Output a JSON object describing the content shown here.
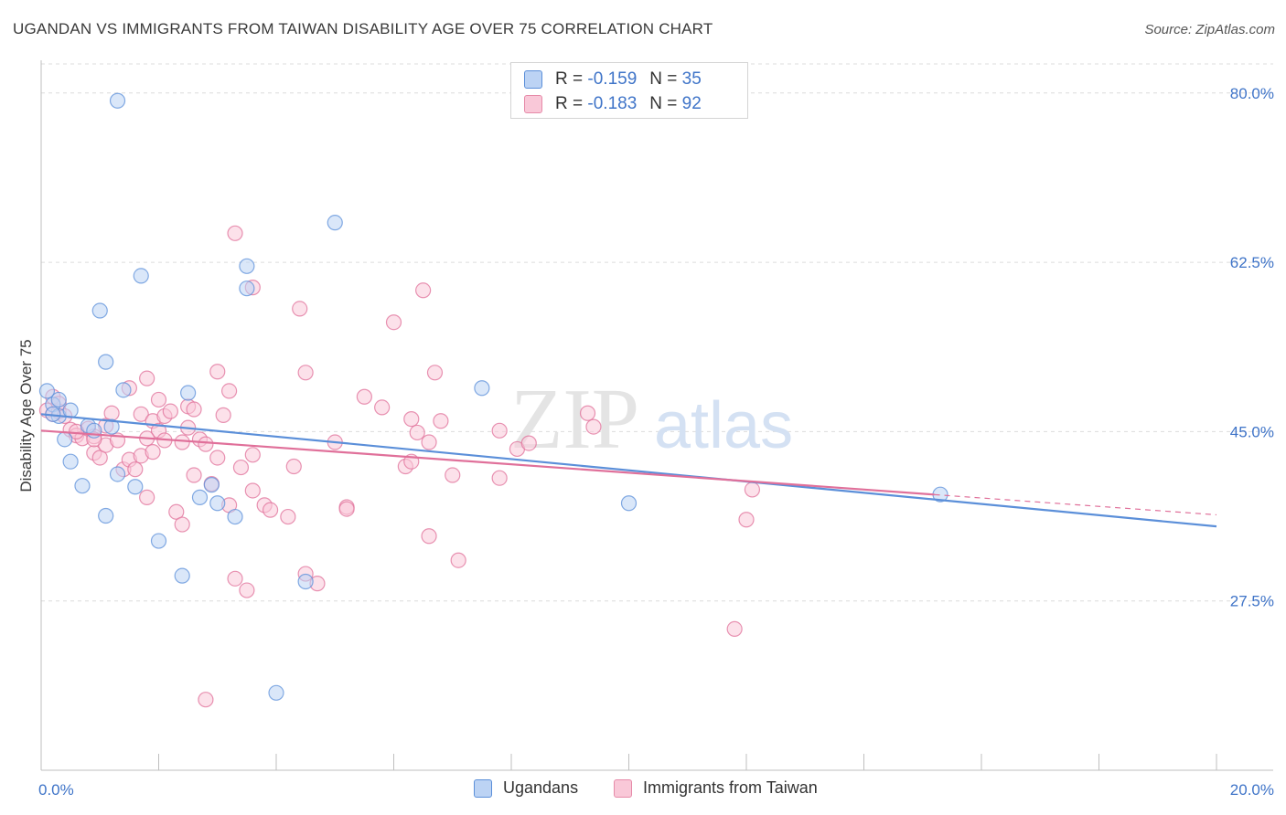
{
  "title": "UGANDAN VS IMMIGRANTS FROM TAIWAN DISABILITY AGE OVER 75 CORRELATION CHART",
  "source": "Source: ZipAtlas.com",
  "watermark": {
    "zip": "ZIP",
    "atlas": "atlas"
  },
  "legend": {
    "r_label": "R =",
    "n_label": "N =",
    "rows": [
      {
        "r": "-0.159",
        "n": "35",
        "fill": "#bcd3f4",
        "stroke": "#5b8fd9"
      },
      {
        "r": "-0.183",
        "n": "92",
        "fill": "#f9c8d8",
        "stroke": "#e68aa8"
      }
    ]
  },
  "bottom_legend": {
    "ugandans": "Ugandans",
    "taiwan": "Immigrants from Taiwan"
  },
  "chart_data": {
    "type": "scatter",
    "ylabel": "Disability Age Over 75",
    "xlabel": "",
    "x_tick_labels": {
      "min": "0.0%",
      "max": "20.0%"
    },
    "y_tick_labels": [
      "80.0%",
      "62.5%",
      "45.0%",
      "27.5%"
    ],
    "xlim": [
      0,
      20
    ],
    "ylim": [
      10,
      83
    ],
    "y_ticks": [
      80,
      62.5,
      45,
      27.5
    ],
    "grid": true,
    "series": [
      {
        "name": "Ugandans",
        "color": "#5b8fd9",
        "fill": "#bcd3f4",
        "trend": {
          "x0": 0,
          "y0": 46.8,
          "x1": 20,
          "y1": 35.2,
          "dash_from": null
        },
        "points": [
          [
            0.1,
            49.2
          ],
          [
            0.2,
            47.8
          ],
          [
            0.3,
            46.6
          ],
          [
            0.5,
            47.2
          ],
          [
            0.8,
            45.6
          ],
          [
            0.4,
            44.2
          ],
          [
            0.5,
            41.9
          ],
          [
            0.7,
            39.4
          ],
          [
            1.0,
            57.5
          ],
          [
            1.1,
            52.2
          ],
          [
            1.1,
            36.3
          ],
          [
            1.2,
            45.5
          ],
          [
            1.3,
            40.6
          ],
          [
            1.4,
            49.3
          ],
          [
            1.6,
            39.3
          ],
          [
            1.7,
            61.1
          ],
          [
            2.0,
            33.7
          ],
          [
            2.4,
            30.1
          ],
          [
            2.5,
            49.0
          ],
          [
            2.7,
            38.2
          ],
          [
            2.9,
            39.5
          ],
          [
            3.0,
            37.6
          ],
          [
            3.3,
            36.2
          ],
          [
            3.5,
            59.8
          ],
          [
            3.5,
            62.1
          ],
          [
            4.0,
            18.0
          ],
          [
            4.5,
            29.5
          ],
          [
            5.0,
            66.6
          ],
          [
            7.5,
            49.5
          ],
          [
            10.0,
            37.6
          ],
          [
            15.3,
            38.5
          ],
          [
            1.3,
            79.2
          ],
          [
            0.2,
            46.8
          ],
          [
            0.9,
            45.1
          ],
          [
            0.3,
            48.3
          ]
        ]
      },
      {
        "name": "Immigrants from Taiwan",
        "color": "#e0709a",
        "fill": "#f9c8d8",
        "trend": {
          "x0": 0,
          "y0": 45.1,
          "x1": 20,
          "y1": 36.4,
          "dash_from": 15.2
        },
        "points": [
          [
            0.1,
            47.2
          ],
          [
            0.2,
            48.6
          ],
          [
            0.2,
            46.8
          ],
          [
            0.3,
            47.1
          ],
          [
            0.4,
            46.6
          ],
          [
            0.5,
            45.2
          ],
          [
            0.6,
            44.6
          ],
          [
            0.7,
            44.3
          ],
          [
            0.8,
            45.3
          ],
          [
            0.9,
            44.5
          ],
          [
            0.9,
            42.8
          ],
          [
            1.0,
            42.3
          ],
          [
            1.1,
            43.6
          ],
          [
            1.2,
            46.9
          ],
          [
            1.3,
            44.1
          ],
          [
            1.4,
            41.1
          ],
          [
            1.5,
            49.5
          ],
          [
            1.5,
            42.1
          ],
          [
            1.6,
            41.1
          ],
          [
            1.7,
            42.5
          ],
          [
            1.7,
            46.8
          ],
          [
            1.8,
            38.2
          ],
          [
            1.8,
            50.5
          ],
          [
            1.9,
            42.9
          ],
          [
            1.9,
            46.1
          ],
          [
            2.0,
            45.1
          ],
          [
            2.0,
            48.3
          ],
          [
            2.1,
            46.6
          ],
          [
            2.1,
            44.1
          ],
          [
            2.2,
            47.1
          ],
          [
            2.3,
            36.7
          ],
          [
            2.4,
            35.4
          ],
          [
            2.4,
            43.9
          ],
          [
            2.5,
            45.4
          ],
          [
            2.5,
            47.6
          ],
          [
            2.6,
            47.3
          ],
          [
            2.7,
            44.2
          ],
          [
            2.8,
            43.7
          ],
          [
            2.8,
            17.3
          ],
          [
            2.9,
            39.6
          ],
          [
            3.0,
            51.2
          ],
          [
            3.0,
            42.3
          ],
          [
            3.1,
            46.7
          ],
          [
            3.2,
            49.2
          ],
          [
            3.2,
            37.4
          ],
          [
            3.3,
            29.8
          ],
          [
            3.3,
            65.5
          ],
          [
            3.4,
            41.3
          ],
          [
            3.5,
            28.6
          ],
          [
            3.6,
            42.6
          ],
          [
            3.6,
            59.9
          ],
          [
            3.8,
            37.4
          ],
          [
            3.9,
            36.9
          ],
          [
            4.2,
            36.2
          ],
          [
            4.3,
            41.4
          ],
          [
            4.4,
            57.7
          ],
          [
            4.5,
            51.1
          ],
          [
            4.5,
            30.3
          ],
          [
            4.7,
            29.3
          ],
          [
            5.0,
            43.9
          ],
          [
            5.2,
            37.2
          ],
          [
            5.5,
            48.6
          ],
          [
            5.8,
            47.5
          ],
          [
            6.0,
            56.3
          ],
          [
            6.2,
            41.4
          ],
          [
            6.3,
            46.3
          ],
          [
            6.3,
            41.9
          ],
          [
            6.4,
            44.9
          ],
          [
            6.5,
            59.6
          ],
          [
            6.6,
            43.9
          ],
          [
            6.6,
            34.2
          ],
          [
            6.7,
            51.1
          ],
          [
            6.8,
            46.1
          ],
          [
            7.0,
            40.5
          ],
          [
            7.1,
            31.7
          ],
          [
            7.8,
            40.2
          ],
          [
            7.8,
            45.1
          ],
          [
            8.1,
            43.2
          ],
          [
            8.3,
            43.8
          ],
          [
            9.3,
            46.9
          ],
          [
            9.4,
            45.5
          ],
          [
            11.8,
            24.6
          ],
          [
            12.0,
            35.9
          ],
          [
            12.1,
            39.0
          ],
          [
            0.3,
            47.9
          ],
          [
            0.6,
            45.0
          ],
          [
            0.9,
            44.2
          ],
          [
            1.1,
            45.6
          ],
          [
            1.8,
            44.3
          ],
          [
            2.6,
            40.5
          ],
          [
            3.6,
            38.9
          ],
          [
            5.2,
            37.0
          ]
        ]
      }
    ]
  }
}
